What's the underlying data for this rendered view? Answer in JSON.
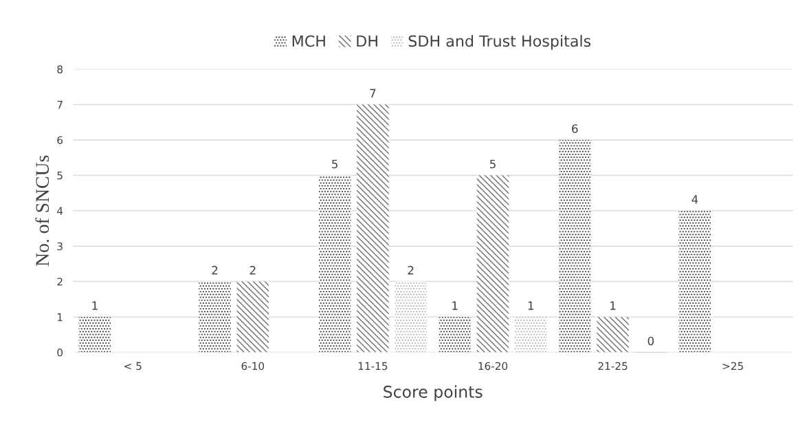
{
  "chart_data": {
    "type": "bar",
    "xlabel": "Score points",
    "ylabel": "No. of SNCUs",
    "categories": [
      "< 5",
      "6-10",
      "11-15",
      "16-20",
      "21-25",
      ">25"
    ],
    "series": [
      {
        "name": "MCH",
        "color": "#3a3a3a",
        "values": [
          1,
          2,
          5,
          1,
          6,
          4
        ]
      },
      {
        "name": "DH",
        "color": "#6e6e6e",
        "values": [
          null,
          2,
          7,
          5,
          1,
          null
        ]
      },
      {
        "name": "SDH and Trust Hospitals",
        "color": "#b4b4b4",
        "values": [
          null,
          null,
          2,
          1,
          0,
          null
        ]
      }
    ],
    "ylim": [
      0,
      8
    ],
    "yticks": [
      0,
      1,
      2,
      3,
      4,
      5,
      6,
      7,
      8
    ],
    "grid": "y",
    "legend": "top",
    "data_labels": true
  }
}
